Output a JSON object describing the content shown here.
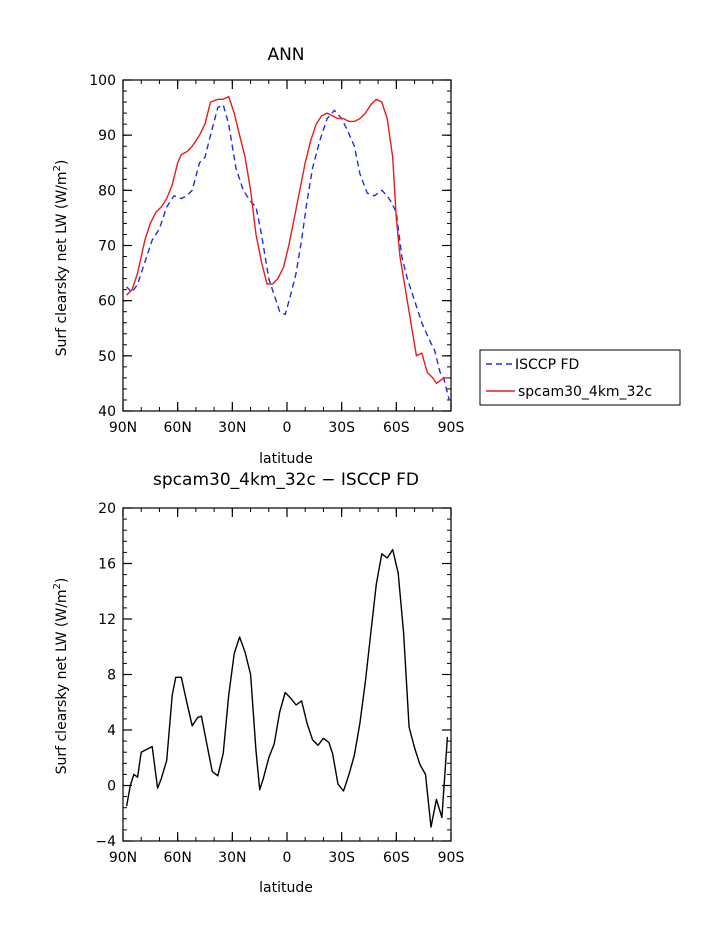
{
  "chart_data": [
    {
      "type": "line",
      "title": "ANN",
      "xlabel": "latitude",
      "ylabel": "Surf clearsky net LW (W/m",
      "ylabel_sup": "2",
      "ylabel_end": ")",
      "xlim": [
        90,
        -90
      ],
      "ylim": [
        40,
        100
      ],
      "x_ticks": [
        90,
        60,
        30,
        0,
        -30,
        -60,
        -90
      ],
      "x_tick_labels": [
        "90N",
        "60N",
        "30N",
        "0",
        "30S",
        "60S",
        "90S"
      ],
      "y_ticks": [
        40,
        50,
        60,
        70,
        80,
        90,
        100
      ],
      "y_tick_labels": [
        "40",
        "50",
        "60",
        "70",
        "80",
        "90",
        "100"
      ],
      "legend_position": "right",
      "series": [
        {
          "name": "ISCCP FD",
          "color": "#1f2fe0",
          "dash": "dashed",
          "x": [
            88,
            85,
            82,
            78,
            74,
            70,
            66,
            62,
            58,
            55,
            52,
            48,
            45,
            42,
            38,
            35,
            32,
            28,
            24,
            20,
            17,
            14,
            10,
            7,
            4,
            1,
            -2,
            -5,
            -8,
            -11,
            -14,
            -18,
            -22,
            -26,
            -30,
            -33,
            -37,
            -40,
            -44,
            -48,
            -52,
            -55,
            -57,
            -60,
            -63,
            -66,
            -70,
            -74,
            -78,
            -81,
            -84,
            -86,
            -89
          ],
          "y": [
            62.5,
            61.5,
            63,
            67,
            71,
            73,
            77,
            79,
            78.5,
            79,
            80,
            85,
            86,
            90,
            95,
            95.5,
            92,
            84,
            80,
            78,
            77,
            72,
            64,
            61,
            58,
            57.5,
            61,
            65,
            71,
            78,
            84,
            89,
            93,
            94.5,
            93,
            91,
            88,
            83,
            79.5,
            79,
            80,
            79,
            78,
            76,
            68,
            64,
            60,
            56,
            53,
            51,
            47,
            46,
            42
          ]
        },
        {
          "name": "spcam30_4km_32c",
          "color": "#e81c1c",
          "dash": "solid",
          "x": [
            88,
            85,
            82,
            78,
            75,
            72,
            69,
            66,
            63,
            60,
            58,
            55,
            52,
            48,
            45,
            42,
            38,
            35,
            32,
            29,
            26,
            23,
            20,
            17,
            14,
            11,
            8,
            5,
            2,
            -1,
            -4,
            -7,
            -10,
            -13,
            -16,
            -19,
            -22,
            -25,
            -28,
            -31,
            -34,
            -37,
            -40,
            -43,
            -46,
            -49,
            -52,
            -55,
            -58,
            -60,
            -62,
            -64,
            -66,
            -68,
            -71,
            -74,
            -77,
            -80,
            -82,
            -84,
            -86,
            -89
          ],
          "y": [
            61,
            62,
            65,
            71,
            74,
            76,
            77,
            78.5,
            81,
            85,
            86.5,
            87,
            88,
            90,
            92,
            96,
            96.5,
            96.5,
            97,
            94,
            90,
            86,
            80,
            72,
            67,
            63,
            63,
            64,
            66,
            70,
            75,
            80,
            85,
            89,
            92,
            93.5,
            94,
            93.5,
            93,
            93,
            92.5,
            92.5,
            93,
            94,
            95.5,
            96.5,
            96,
            93,
            86,
            75,
            68,
            64,
            60,
            56,
            50,
            50.5,
            47,
            46,
            45,
            45.5,
            46,
            46
          ]
        }
      ]
    },
    {
      "type": "line",
      "title": "spcam30_4km_32c − ISCCP FD",
      "xlabel": "latitude",
      "ylabel": "Surf clearsky net LW (W/m",
      "ylabel_sup": "2",
      "ylabel_end": ")",
      "xlim": [
        90,
        -90
      ],
      "ylim": [
        -4,
        20
      ],
      "x_ticks": [
        90,
        60,
        30,
        0,
        -30,
        -60,
        -90
      ],
      "x_tick_labels": [
        "90N",
        "60N",
        "30N",
        "0",
        "30S",
        "60S",
        "90S"
      ],
      "y_ticks": [
        -4,
        0,
        4,
        8,
        12,
        16,
        20
      ],
      "y_tick_labels": [
        "−4",
        "0",
        "4",
        "8",
        "12",
        "16",
        "20"
      ],
      "series": [
        {
          "name": "",
          "color": "#000000",
          "dash": "solid",
          "x": [
            88,
            86,
            84,
            82,
            80,
            77,
            74,
            71,
            69,
            66,
            63,
            61,
            58,
            55,
            52,
            49,
            47,
            44,
            41,
            38,
            35,
            32,
            29,
            26,
            23,
            20,
            17,
            15,
            13,
            10,
            7,
            4,
            1,
            -2,
            -5,
            -8,
            -11,
            -14,
            -17,
            -20,
            -23,
            -25,
            -28,
            -31,
            -34,
            -37,
            -40,
            -43,
            -46,
            -49,
            -52,
            -55,
            -58,
            -61,
            -64,
            -67,
            -70,
            -73,
            -76,
            -79,
            -82,
            -85,
            -88
          ],
          "y": [
            -1.5,
            0,
            0.8,
            0.6,
            2.4,
            2.6,
            2.8,
            -0.2,
            0.5,
            1.8,
            6.5,
            7.8,
            7.8,
            6,
            4.3,
            4.9,
            5,
            3,
            1,
            0.7,
            2.3,
            6.5,
            9.5,
            10.7,
            9.6,
            8,
            2.5,
            -0.3,
            0.5,
            2,
            3,
            5.3,
            6.7,
            6.3,
            5.8,
            6.1,
            4.5,
            3.3,
            2.9,
            3.4,
            3.1,
            2.3,
            0.1,
            -0.4,
            0.8,
            2.2,
            4.5,
            7.5,
            11,
            14.5,
            16.7,
            16.4,
            17,
            15.3,
            11,
            4.2,
            2.7,
            1.5,
            0.8,
            -3,
            -1,
            -2.3,
            3.5
          ]
        }
      ]
    }
  ]
}
